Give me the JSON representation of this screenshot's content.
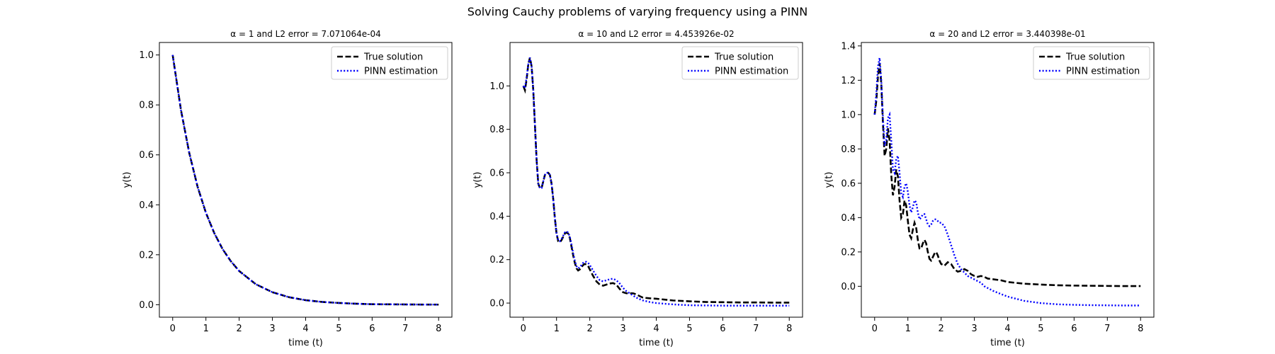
{
  "figure": {
    "title": "Solving Cauchy problems of varying frequency using a PINN"
  },
  "colors": {
    "true_solution": "#000000",
    "pinn_estimation": "#0000ff"
  },
  "chart_data": [
    {
      "type": "line",
      "title": "α = 1 and L2 error = 7.071064e-04",
      "xlabel": "time (t)",
      "ylabel": "y(t)",
      "xlim": [
        -0.4,
        8.4
      ],
      "ylim": [
        -0.05,
        1.05
      ],
      "xticks": [
        0,
        1,
        2,
        3,
        4,
        5,
        6,
        7,
        8
      ],
      "yticks": [
        0.0,
        0.2,
        0.4,
        0.6,
        0.8,
        1.0
      ],
      "ytick_labels": [
        "0.0",
        "0.2",
        "0.4",
        "0.6",
        "0.8",
        "1.0"
      ],
      "legend_position": "top-right",
      "series": [
        {
          "name": "True solution",
          "style": "dashed",
          "color": "#000000",
          "x": [
            0,
            0.25,
            0.5,
            0.75,
            1,
            1.25,
            1.5,
            1.75,
            2,
            2.5,
            3,
            3.5,
            4,
            4.5,
            5,
            5.5,
            6,
            6.5,
            7,
            7.5,
            8
          ],
          "y": [
            1.0,
            0.779,
            0.607,
            0.472,
            0.368,
            0.287,
            0.223,
            0.174,
            0.135,
            0.082,
            0.05,
            0.03,
            0.018,
            0.011,
            0.007,
            0.004,
            0.002,
            0.0015,
            0.001,
            0.0006,
            0.0003
          ]
        },
        {
          "name": "PINN estimation",
          "style": "dotted",
          "color": "#0000ff",
          "x": [
            0,
            0.25,
            0.5,
            0.75,
            1,
            1.25,
            1.5,
            1.75,
            2,
            2.5,
            3,
            3.5,
            4,
            4.5,
            5,
            5.5,
            6,
            6.5,
            7,
            7.5,
            8
          ],
          "y": [
            1.0,
            0.779,
            0.607,
            0.472,
            0.368,
            0.287,
            0.223,
            0.174,
            0.135,
            0.082,
            0.05,
            0.03,
            0.018,
            0.011,
            0.007,
            0.004,
            0.002,
            0.0015,
            0.001,
            0.0006,
            0.0003
          ]
        }
      ]
    },
    {
      "type": "line",
      "title": "α = 10 and L2 error = 4.453926e-02",
      "xlabel": "time (t)",
      "ylabel": "y(t)",
      "xlim": [
        -0.4,
        8.4
      ],
      "ylim": [
        -0.065,
        1.2
      ],
      "xticks": [
        0,
        1,
        2,
        3,
        4,
        5,
        6,
        7,
        8
      ],
      "yticks": [
        0.0,
        0.2,
        0.4,
        0.6,
        0.8,
        1.0
      ],
      "ytick_labels": [
        "0.0",
        "0.2",
        "0.4",
        "0.6",
        "0.8",
        "1.0"
      ],
      "legend_position": "top-right",
      "series": [
        {
          "name": "True solution",
          "style": "dashed",
          "color": "#000000",
          "x": [
            0,
            0.05,
            0.1,
            0.15,
            0.2,
            0.25,
            0.3,
            0.35,
            0.4,
            0.45,
            0.5,
            0.55,
            0.6,
            0.65,
            0.7,
            0.75,
            0.8,
            0.85,
            0.9,
            0.95,
            1.0,
            1.05,
            1.1,
            1.15,
            1.2,
            1.25,
            1.3,
            1.35,
            1.4,
            1.45,
            1.5,
            1.55,
            1.6,
            1.65,
            1.7,
            1.75,
            1.8,
            1.85,
            1.9,
            1.95,
            2.0,
            2.1,
            2.2,
            2.3,
            2.4,
            2.5,
            2.6,
            2.7,
            2.8,
            2.9,
            3.0,
            3.1,
            3.2,
            3.3,
            3.4,
            3.5,
            3.6,
            3.8,
            4.0,
            4.5,
            5.0,
            5.5,
            6.0,
            6.5,
            7.0,
            7.5,
            8.0
          ],
          "y": [
            1.0,
            0.98,
            1.03,
            1.1,
            1.13,
            1.09,
            0.98,
            0.82,
            0.66,
            0.55,
            0.53,
            0.53,
            0.56,
            0.59,
            0.6,
            0.6,
            0.59,
            0.55,
            0.48,
            0.39,
            0.32,
            0.285,
            0.28,
            0.29,
            0.305,
            0.32,
            0.325,
            0.32,
            0.3,
            0.26,
            0.22,
            0.185,
            0.16,
            0.15,
            0.155,
            0.165,
            0.175,
            0.18,
            0.178,
            0.17,
            0.155,
            0.125,
            0.1,
            0.085,
            0.08,
            0.085,
            0.09,
            0.092,
            0.085,
            0.065,
            0.05,
            0.045,
            0.045,
            0.045,
            0.04,
            0.032,
            0.025,
            0.022,
            0.02,
            0.012,
            0.008,
            0.005,
            0.004,
            0.003,
            0.003,
            0.002,
            0.002
          ]
        },
        {
          "name": "PINN estimation",
          "style": "dotted",
          "color": "#0000ff",
          "x": [
            0,
            0.05,
            0.1,
            0.15,
            0.2,
            0.25,
            0.3,
            0.35,
            0.4,
            0.45,
            0.5,
            0.55,
            0.6,
            0.65,
            0.7,
            0.75,
            0.8,
            0.85,
            0.9,
            0.95,
            1.0,
            1.05,
            1.1,
            1.15,
            1.2,
            1.25,
            1.3,
            1.35,
            1.4,
            1.45,
            1.5,
            1.55,
            1.6,
            1.65,
            1.7,
            1.75,
            1.8,
            1.85,
            1.9,
            1.95,
            2.0,
            2.1,
            2.2,
            2.3,
            2.4,
            2.5,
            2.6,
            2.7,
            2.8,
            2.9,
            3.0,
            3.1,
            3.2,
            3.3,
            3.4,
            3.5,
            3.6,
            3.8,
            4.0,
            4.5,
            5.0,
            5.5,
            6.0,
            6.5,
            7.0,
            7.5,
            8.0
          ],
          "y": [
            1.0,
            0.99,
            1.04,
            1.1,
            1.13,
            1.09,
            0.98,
            0.82,
            0.66,
            0.55,
            0.53,
            0.53,
            0.56,
            0.59,
            0.6,
            0.6,
            0.59,
            0.55,
            0.48,
            0.39,
            0.32,
            0.29,
            0.285,
            0.295,
            0.31,
            0.325,
            0.33,
            0.325,
            0.305,
            0.27,
            0.23,
            0.195,
            0.17,
            0.16,
            0.165,
            0.175,
            0.185,
            0.19,
            0.19,
            0.185,
            0.175,
            0.15,
            0.125,
            0.105,
            0.1,
            0.105,
            0.11,
            0.112,
            0.105,
            0.09,
            0.07,
            0.055,
            0.045,
            0.035,
            0.025,
            0.018,
            0.012,
            0.005,
            0.0,
            -0.006,
            -0.01,
            -0.011,
            -0.012,
            -0.012,
            -0.012,
            -0.012,
            -0.012
          ]
        }
      ]
    },
    {
      "type": "line",
      "title": "α = 20 and L2 error = 3.440398e-01",
      "xlabel": "time (t)",
      "ylabel": "y(t)",
      "xlim": [
        -0.4,
        8.4
      ],
      "ylim": [
        -0.18,
        1.42
      ],
      "xticks": [
        0,
        1,
        2,
        3,
        4,
        5,
        6,
        7,
        8
      ],
      "yticks": [
        0.0,
        0.2,
        0.4,
        0.6,
        0.8,
        1.0,
        1.2,
        1.4
      ],
      "ytick_labels": [
        "0.0",
        "0.2",
        "0.4",
        "0.6",
        "0.8",
        "1.0",
        "1.2",
        "1.4"
      ],
      "legend_position": "top-right",
      "series": [
        {
          "name": "True solution",
          "style": "dashed",
          "color": "#000000",
          "x": [
            0,
            0.05,
            0.1,
            0.15,
            0.2,
            0.25,
            0.3,
            0.35,
            0.4,
            0.45,
            0.5,
            0.55,
            0.6,
            0.65,
            0.7,
            0.75,
            0.8,
            0.85,
            0.9,
            0.95,
            1.0,
            1.05,
            1.1,
            1.15,
            1.2,
            1.25,
            1.3,
            1.35,
            1.4,
            1.45,
            1.5,
            1.55,
            1.6,
            1.65,
            1.7,
            1.75,
            1.8,
            1.85,
            1.9,
            1.95,
            2.0,
            2.1,
            2.2,
            2.3,
            2.4,
            2.5,
            2.6,
            2.7,
            2.8,
            2.9,
            3.0,
            3.1,
            3.2,
            3.3,
            3.4,
            3.6,
            3.8,
            4.0,
            4.5,
            5.0,
            5.5,
            6.0,
            6.5,
            7.0,
            7.5,
            8.0
          ],
          "y": [
            1.0,
            1.08,
            1.22,
            1.3,
            1.18,
            0.95,
            0.76,
            0.8,
            0.92,
            0.85,
            0.65,
            0.53,
            0.58,
            0.68,
            0.64,
            0.5,
            0.4,
            0.42,
            0.5,
            0.47,
            0.38,
            0.3,
            0.28,
            0.33,
            0.37,
            0.34,
            0.27,
            0.22,
            0.22,
            0.25,
            0.27,
            0.25,
            0.2,
            0.16,
            0.15,
            0.17,
            0.19,
            0.2,
            0.18,
            0.15,
            0.13,
            0.12,
            0.14,
            0.13,
            0.1,
            0.085,
            0.09,
            0.1,
            0.09,
            0.07,
            0.06,
            0.055,
            0.06,
            0.055,
            0.045,
            0.04,
            0.035,
            0.025,
            0.015,
            0.01,
            0.006,
            0.004,
            0.003,
            0.002,
            0.001,
            0.001
          ]
        },
        {
          "name": "PINN estimation",
          "style": "dotted",
          "color": "#0000ff",
          "x": [
            0,
            0.05,
            0.1,
            0.15,
            0.2,
            0.25,
            0.3,
            0.35,
            0.4,
            0.45,
            0.5,
            0.55,
            0.6,
            0.65,
            0.7,
            0.75,
            0.8,
            0.85,
            0.9,
            0.95,
            1.0,
            1.05,
            1.1,
            1.15,
            1.2,
            1.25,
            1.3,
            1.35,
            1.4,
            1.45,
            1.5,
            1.55,
            1.6,
            1.65,
            1.7,
            1.75,
            1.8,
            1.85,
            1.9,
            1.95,
            2.0,
            2.1,
            2.2,
            2.3,
            2.4,
            2.5,
            2.6,
            2.7,
            2.8,
            2.9,
            3.0,
            3.1,
            3.2,
            3.3,
            3.4,
            3.6,
            3.8,
            4.0,
            4.5,
            5.0,
            5.5,
            6.0,
            6.5,
            7.0,
            7.5,
            8.0
          ],
          "y": [
            1.0,
            1.12,
            1.28,
            1.33,
            1.2,
            0.98,
            0.82,
            0.85,
            0.98,
            1.0,
            0.85,
            0.68,
            0.66,
            0.74,
            0.76,
            0.66,
            0.54,
            0.52,
            0.58,
            0.6,
            0.55,
            0.47,
            0.43,
            0.46,
            0.5,
            0.49,
            0.43,
            0.39,
            0.4,
            0.42,
            0.42,
            0.39,
            0.36,
            0.35,
            0.36,
            0.38,
            0.39,
            0.39,
            0.38,
            0.37,
            0.37,
            0.35,
            0.3,
            0.24,
            0.18,
            0.13,
            0.1,
            0.08,
            0.06,
            0.05,
            0.04,
            0.03,
            0.02,
            0.0,
            -0.01,
            -0.03,
            -0.045,
            -0.06,
            -0.085,
            -0.098,
            -0.105,
            -0.108,
            -0.11,
            -0.111,
            -0.112,
            -0.112
          ]
        }
      ]
    }
  ]
}
